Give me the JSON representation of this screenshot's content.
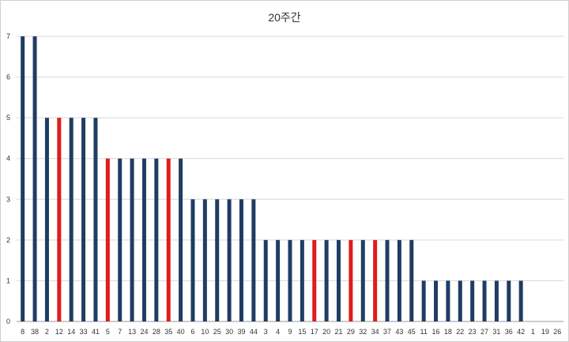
{
  "chart_data": {
    "type": "bar",
    "title": "20주간",
    "categories": [
      "8",
      "38",
      "2",
      "12",
      "14",
      "33",
      "41",
      "5",
      "7",
      "13",
      "24",
      "28",
      "35",
      "40",
      "6",
      "10",
      "25",
      "30",
      "39",
      "44",
      "3",
      "4",
      "9",
      "15",
      "17",
      "20",
      "21",
      "29",
      "32",
      "34",
      "37",
      "43",
      "45",
      "11",
      "16",
      "18",
      "22",
      "23",
      "27",
      "31",
      "36",
      "42",
      "1",
      "19",
      "26"
    ],
    "values": [
      7,
      7,
      5,
      5,
      5,
      5,
      5,
      4,
      4,
      4,
      4,
      4,
      4,
      4,
      3,
      3,
      3,
      3,
      3,
      3,
      2,
      2,
      2,
      2,
      2,
      2,
      2,
      2,
      2,
      2,
      2,
      2,
      2,
      1,
      1,
      1,
      1,
      1,
      1,
      1,
      1,
      1,
      0,
      0,
      0
    ],
    "highlighted": [
      "12",
      "5",
      "35",
      "17",
      "29",
      "34"
    ],
    "y_ticks": [
      "0",
      "1",
      "2",
      "3",
      "4",
      "5",
      "6",
      "7"
    ],
    "ylim": [
      0,
      7
    ],
    "xlabel": "",
    "ylabel": "",
    "grid": true,
    "legend": "none",
    "colors": {
      "bar": "#1f3d63",
      "highlight": "#e01b1b",
      "grid": "#d9d9d9",
      "axis": "#999999"
    }
  }
}
